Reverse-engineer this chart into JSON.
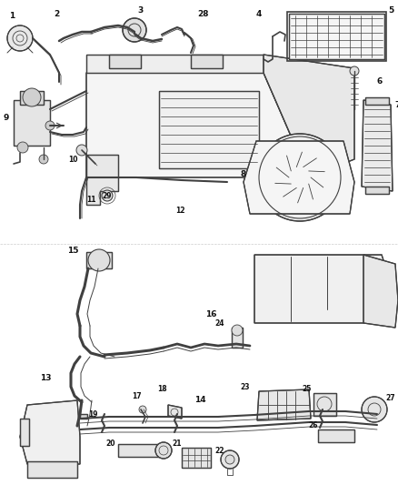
{
  "bg_color": "#ffffff",
  "line_color": "#404040",
  "text_color": "#111111",
  "fig_width": 4.38,
  "fig_height": 5.33,
  "dpi": 100
}
